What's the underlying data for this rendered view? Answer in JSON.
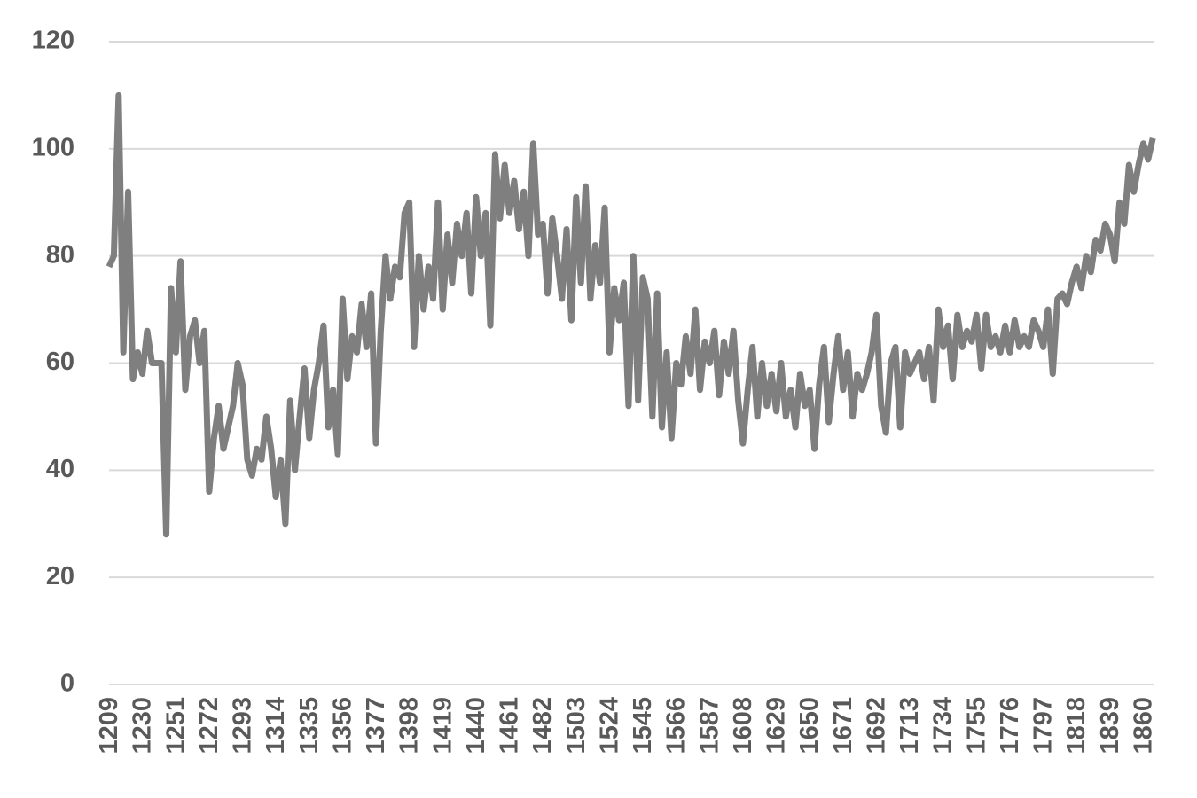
{
  "chart_data": {
    "type": "line",
    "color": "#7f7f7f",
    "grid": true,
    "x": [
      1209,
      1212,
      1215,
      1218,
      1221,
      1224,
      1227,
      1230,
      1233,
      1236,
      1239,
      1242,
      1245,
      1248,
      1251,
      1254,
      1257,
      1260,
      1263,
      1266,
      1269,
      1272,
      1275,
      1278,
      1281,
      1284,
      1287,
      1290,
      1293,
      1296,
      1299,
      1302,
      1305,
      1308,
      1311,
      1314,
      1317,
      1320,
      1323,
      1326,
      1329,
      1332,
      1335,
      1338,
      1341,
      1344,
      1347,
      1350,
      1353,
      1356,
      1359,
      1362,
      1365,
      1368,
      1371,
      1374,
      1377,
      1380,
      1383,
      1386,
      1389,
      1392,
      1395,
      1398,
      1401,
      1404,
      1407,
      1410,
      1413,
      1416,
      1419,
      1422,
      1425,
      1428,
      1431,
      1434,
      1437,
      1440,
      1443,
      1446,
      1449,
      1452,
      1455,
      1458,
      1461,
      1464,
      1467,
      1470,
      1473,
      1476,
      1479,
      1482,
      1485,
      1488,
      1491,
      1494,
      1497,
      1500,
      1503,
      1506,
      1509,
      1512,
      1515,
      1518,
      1521,
      1524,
      1527,
      1530,
      1533,
      1536,
      1539,
      1542,
      1545,
      1548,
      1551,
      1554,
      1557,
      1560,
      1563,
      1566,
      1569,
      1572,
      1575,
      1578,
      1581,
      1584,
      1587,
      1590,
      1593,
      1596,
      1599,
      1602,
      1605,
      1608,
      1611,
      1614,
      1617,
      1620,
      1623,
      1626,
      1629,
      1632,
      1635,
      1638,
      1641,
      1644,
      1647,
      1650,
      1653,
      1656,
      1659,
      1662,
      1665,
      1668,
      1671,
      1674,
      1677,
      1680,
      1683,
      1686,
      1689,
      1692,
      1695,
      1698,
      1701,
      1704,
      1707,
      1710,
      1713,
      1716,
      1719,
      1722,
      1725,
      1728,
      1731,
      1734,
      1737,
      1740,
      1743,
      1746,
      1749,
      1752,
      1755,
      1758,
      1761,
      1764,
      1767,
      1770,
      1773,
      1776,
      1779,
      1782,
      1785,
      1788,
      1791,
      1794,
      1797,
      1800,
      1803,
      1806,
      1809,
      1812,
      1815,
      1818,
      1821,
      1824,
      1827,
      1830,
      1833,
      1836,
      1839,
      1842,
      1845,
      1848,
      1851,
      1854,
      1857,
      1860,
      1863,
      1866
    ],
    "values": [
      78,
      80,
      110,
      62,
      92,
      57,
      62,
      58,
      66,
      60,
      60,
      60,
      28,
      74,
      62,
      79,
      55,
      65,
      68,
      60,
      66,
      36,
      46,
      52,
      44,
      48,
      52,
      60,
      56,
      42,
      39,
      44,
      42,
      50,
      44,
      35,
      42,
      30,
      53,
      40,
      50,
      59,
      46,
      55,
      60,
      67,
      48,
      55,
      43,
      72,
      57,
      65,
      62,
      71,
      63,
      73,
      45,
      66,
      80,
      72,
      78,
      76,
      88,
      90,
      63,
      80,
      70,
      78,
      72,
      90,
      70,
      84,
      75,
      86,
      80,
      88,
      73,
      91,
      80,
      88,
      67,
      99,
      87,
      97,
      88,
      94,
      85,
      92,
      80,
      101,
      84,
      86,
      73,
      87,
      80,
      72,
      85,
      68,
      91,
      75,
      93,
      72,
      82,
      75,
      89,
      62,
      74,
      68,
      75,
      52,
      80,
      53,
      76,
      72,
      50,
      73,
      48,
      62,
      46,
      60,
      56,
      65,
      58,
      70,
      55,
      64,
      60,
      66,
      54,
      64,
      58,
      66,
      53,
      45,
      55,
      63,
      50,
      60,
      52,
      58,
      51,
      60,
      50,
      55,
      48,
      58,
      52,
      55,
      44,
      56,
      63,
      49,
      58,
      65,
      55,
      62,
      50,
      58,
      55,
      58,
      62,
      69,
      52,
      47,
      60,
      63,
      48,
      62,
      58,
      60,
      62,
      57,
      63,
      53,
      70,
      63,
      67,
      57,
      69,
      63,
      66,
      64,
      69,
      59,
      69,
      63,
      65,
      62,
      67,
      62,
      68,
      63,
      65,
      63,
      68,
      66,
      63,
      70,
      58,
      72,
      73,
      71,
      75,
      78,
      74,
      80,
      77,
      83,
      81,
      86,
      84,
      79,
      90,
      86,
      97,
      92,
      97,
      101,
      98,
      102
    ],
    "xlim": [
      1209,
      1867
    ],
    "xticks": [
      1209,
      1230,
      1251,
      1272,
      1293,
      1314,
      1335,
      1356,
      1377,
      1398,
      1419,
      1440,
      1461,
      1482,
      1503,
      1524,
      1545,
      1566,
      1587,
      1608,
      1629,
      1650,
      1671,
      1692,
      1713,
      1734,
      1755,
      1776,
      1797,
      1818,
      1839,
      1860
    ],
    "ylim": [
      0,
      120
    ],
    "yticks": [
      0,
      20,
      40,
      60,
      80,
      100,
      120
    ]
  }
}
